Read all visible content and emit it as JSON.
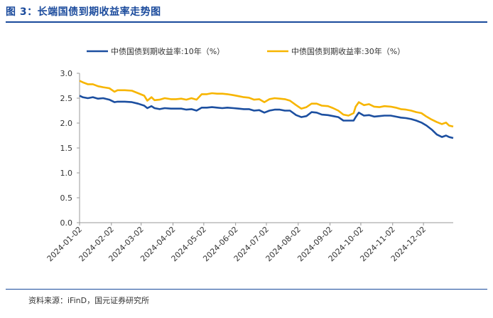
{
  "figure": {
    "title": "图 3：长端国债到期收益率走势图",
    "source": "资料来源：iFinD，国元证券研究所"
  },
  "colors": {
    "accent": "#1a4a9c",
    "series10": "#1c4fa0",
    "series30": "#f7b500"
  },
  "chart_data": {
    "type": "line",
    "title": "",
    "xlabel": "",
    "ylabel": "",
    "ylim": [
      0.0,
      3.0
    ],
    "yticks": [
      "0.0",
      "0.5",
      "1.0",
      "1.5",
      "2.0",
      "2.5",
      "3.0"
    ],
    "xticks": [
      "2024-01-02",
      "2024-02-02",
      "2024-03-02",
      "2024-04-02",
      "2024-05-02",
      "2024-06-02",
      "2024-07-02",
      "2024-08-02",
      "2024-09-02",
      "2024-10-02",
      "2024-11-02",
      "2024-12-02"
    ],
    "grid": false,
    "legend_position": "top",
    "series": [
      {
        "name": "中债国债到期收益率:10年（%）",
        "points": [
          [
            "2024-01-02",
            2.55
          ],
          [
            "2024-01-05",
            2.52
          ],
          [
            "2024-01-10",
            2.5
          ],
          [
            "2024-01-15",
            2.52
          ],
          [
            "2024-01-20",
            2.49
          ],
          [
            "2024-01-25",
            2.5
          ],
          [
            "2024-01-31",
            2.47
          ],
          [
            "2024-02-05",
            2.42
          ],
          [
            "2024-02-08",
            2.43
          ],
          [
            "2024-02-15",
            2.43
          ],
          [
            "2024-02-22",
            2.42
          ],
          [
            "2024-02-28",
            2.39
          ],
          [
            "2024-03-05",
            2.35
          ],
          [
            "2024-03-08",
            2.3
          ],
          [
            "2024-03-12",
            2.34
          ],
          [
            "2024-03-15",
            2.3
          ],
          [
            "2024-03-20",
            2.28
          ],
          [
            "2024-03-25",
            2.3
          ],
          [
            "2024-03-31",
            2.29
          ],
          [
            "2024-04-05",
            2.29
          ],
          [
            "2024-04-10",
            2.29
          ],
          [
            "2024-04-15",
            2.27
          ],
          [
            "2024-04-20",
            2.28
          ],
          [
            "2024-04-25",
            2.25
          ],
          [
            "2024-04-30",
            2.31
          ],
          [
            "2024-05-05",
            2.31
          ],
          [
            "2024-05-10",
            2.32
          ],
          [
            "2024-05-15",
            2.31
          ],
          [
            "2024-05-20",
            2.3
          ],
          [
            "2024-05-25",
            2.31
          ],
          [
            "2024-05-31",
            2.3
          ],
          [
            "2024-06-05",
            2.29
          ],
          [
            "2024-06-10",
            2.28
          ],
          [
            "2024-06-15",
            2.28
          ],
          [
            "2024-06-20",
            2.25
          ],
          [
            "2024-06-25",
            2.26
          ],
          [
            "2024-06-30",
            2.21
          ],
          [
            "2024-07-05",
            2.25
          ],
          [
            "2024-07-10",
            2.27
          ],
          [
            "2024-07-15",
            2.27
          ],
          [
            "2024-07-20",
            2.25
          ],
          [
            "2024-07-25",
            2.25
          ],
          [
            "2024-07-31",
            2.16
          ],
          [
            "2024-08-05",
            2.12
          ],
          [
            "2024-08-10",
            2.14
          ],
          [
            "2024-08-15",
            2.22
          ],
          [
            "2024-08-20",
            2.21
          ],
          [
            "2024-08-25",
            2.17
          ],
          [
            "2024-08-31",
            2.16
          ],
          [
            "2024-09-05",
            2.14
          ],
          [
            "2024-09-10",
            2.12
          ],
          [
            "2024-09-15",
            2.05
          ],
          [
            "2024-09-20",
            2.05
          ],
          [
            "2024-09-25",
            2.05
          ],
          [
            "2024-09-27",
            2.12
          ],
          [
            "2024-09-30",
            2.21
          ],
          [
            "2024-10-05",
            2.15
          ],
          [
            "2024-10-10",
            2.16
          ],
          [
            "2024-10-15",
            2.13
          ],
          [
            "2024-10-20",
            2.14
          ],
          [
            "2024-10-25",
            2.15
          ],
          [
            "2024-10-31",
            2.15
          ],
          [
            "2024-11-05",
            2.13
          ],
          [
            "2024-11-10",
            2.11
          ],
          [
            "2024-11-15",
            2.1
          ],
          [
            "2024-11-20",
            2.08
          ],
          [
            "2024-11-25",
            2.05
          ],
          [
            "2024-11-30",
            2.01
          ],
          [
            "2024-12-05",
            1.95
          ],
          [
            "2024-12-10",
            1.87
          ],
          [
            "2024-12-15",
            1.77
          ],
          [
            "2024-12-20",
            1.72
          ],
          [
            "2024-12-24",
            1.75
          ],
          [
            "2024-12-27",
            1.72
          ],
          [
            "2024-12-31",
            1.7
          ]
        ]
      },
      {
        "name": "中债国债到期收益率:30年（%）",
        "points": [
          [
            "2024-01-02",
            2.85
          ],
          [
            "2024-01-05",
            2.82
          ],
          [
            "2024-01-10",
            2.78
          ],
          [
            "2024-01-15",
            2.78
          ],
          [
            "2024-01-20",
            2.74
          ],
          [
            "2024-01-25",
            2.72
          ],
          [
            "2024-01-31",
            2.7
          ],
          [
            "2024-02-05",
            2.63
          ],
          [
            "2024-02-08",
            2.66
          ],
          [
            "2024-02-15",
            2.66
          ],
          [
            "2024-02-22",
            2.65
          ],
          [
            "2024-02-28",
            2.6
          ],
          [
            "2024-03-05",
            2.55
          ],
          [
            "2024-03-08",
            2.45
          ],
          [
            "2024-03-12",
            2.52
          ],
          [
            "2024-03-15",
            2.46
          ],
          [
            "2024-03-20",
            2.47
          ],
          [
            "2024-03-25",
            2.5
          ],
          [
            "2024-03-31",
            2.48
          ],
          [
            "2024-04-05",
            2.48
          ],
          [
            "2024-04-10",
            2.49
          ],
          [
            "2024-04-15",
            2.47
          ],
          [
            "2024-04-20",
            2.5
          ],
          [
            "2024-04-25",
            2.47
          ],
          [
            "2024-04-30",
            2.58
          ],
          [
            "2024-05-05",
            2.58
          ],
          [
            "2024-05-10",
            2.6
          ],
          [
            "2024-05-15",
            2.59
          ],
          [
            "2024-05-20",
            2.59
          ],
          [
            "2024-05-25",
            2.58
          ],
          [
            "2024-05-31",
            2.56
          ],
          [
            "2024-06-05",
            2.54
          ],
          [
            "2024-06-10",
            2.52
          ],
          [
            "2024-06-15",
            2.51
          ],
          [
            "2024-06-20",
            2.47
          ],
          [
            "2024-06-25",
            2.48
          ],
          [
            "2024-06-30",
            2.42
          ],
          [
            "2024-07-05",
            2.48
          ],
          [
            "2024-07-10",
            2.5
          ],
          [
            "2024-07-15",
            2.49
          ],
          [
            "2024-07-20",
            2.48
          ],
          [
            "2024-07-25",
            2.45
          ],
          [
            "2024-07-31",
            2.36
          ],
          [
            "2024-08-05",
            2.29
          ],
          [
            "2024-08-10",
            2.32
          ],
          [
            "2024-08-15",
            2.39
          ],
          [
            "2024-08-20",
            2.39
          ],
          [
            "2024-08-25",
            2.35
          ],
          [
            "2024-08-31",
            2.34
          ],
          [
            "2024-09-05",
            2.3
          ],
          [
            "2024-09-10",
            2.25
          ],
          [
            "2024-09-15",
            2.17
          ],
          [
            "2024-09-20",
            2.15
          ],
          [
            "2024-09-25",
            2.2
          ],
          [
            "2024-09-27",
            2.33
          ],
          [
            "2024-09-30",
            2.42
          ],
          [
            "2024-10-05",
            2.36
          ],
          [
            "2024-10-10",
            2.38
          ],
          [
            "2024-10-15",
            2.33
          ],
          [
            "2024-10-20",
            2.32
          ],
          [
            "2024-10-25",
            2.34
          ],
          [
            "2024-10-31",
            2.33
          ],
          [
            "2024-11-05",
            2.31
          ],
          [
            "2024-11-10",
            2.28
          ],
          [
            "2024-11-15",
            2.27
          ],
          [
            "2024-11-20",
            2.25
          ],
          [
            "2024-11-25",
            2.22
          ],
          [
            "2024-11-30",
            2.2
          ],
          [
            "2024-12-05",
            2.13
          ],
          [
            "2024-12-10",
            2.07
          ],
          [
            "2024-12-15",
            2.02
          ],
          [
            "2024-12-20",
            1.98
          ],
          [
            "2024-12-24",
            2.01
          ],
          [
            "2024-12-27",
            1.95
          ],
          [
            "2024-12-31",
            1.93
          ]
        ]
      }
    ]
  }
}
